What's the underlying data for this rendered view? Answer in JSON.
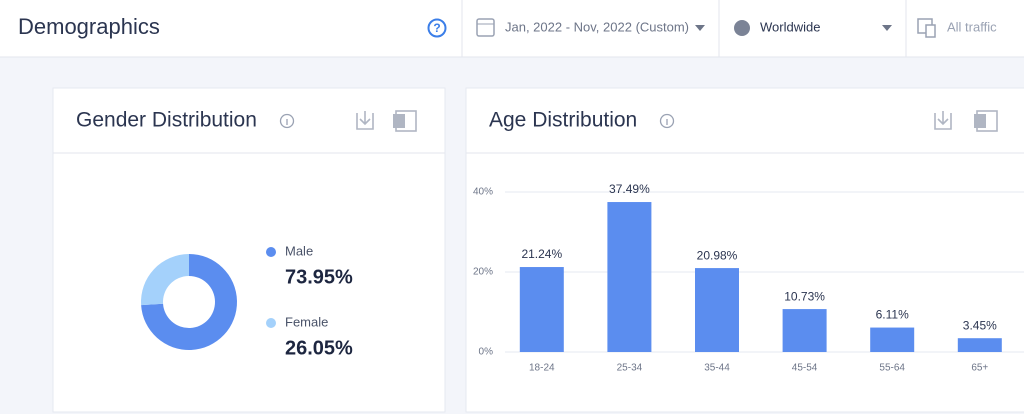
{
  "header": {
    "title": "Demographics",
    "date_range": "Jan, 2022 - Nov, 2022 (Custom)",
    "region": "Worldwide",
    "traffic": "All traffic"
  },
  "chart_data": [
    {
      "type": "donut",
      "title": "Gender Distribution",
      "categories": [
        "Male",
        "Female"
      ],
      "values": [
        73.95,
        26.05
      ],
      "value_labels": [
        "73.95%",
        "26.05%"
      ],
      "colors": [
        "#5b8def",
        "#a4d1fb"
      ]
    },
    {
      "type": "bar",
      "title": "Age Distribution",
      "categories": [
        "18-24",
        "25-34",
        "35-44",
        "45-54",
        "55-64",
        "65+"
      ],
      "values": [
        21.24,
        37.49,
        20.98,
        10.73,
        6.11,
        3.45
      ],
      "value_labels": [
        "21.24%",
        "37.49%",
        "20.98%",
        "10.73%",
        "6.11%",
        "3.45%"
      ],
      "color": "#5b8def",
      "ylim": [
        0,
        40
      ],
      "yticks": [
        {
          "value": 0,
          "label": "0%"
        },
        {
          "value": 20,
          "label": "20%"
        },
        {
          "value": 40,
          "label": "40%"
        }
      ],
      "grid": true
    }
  ]
}
